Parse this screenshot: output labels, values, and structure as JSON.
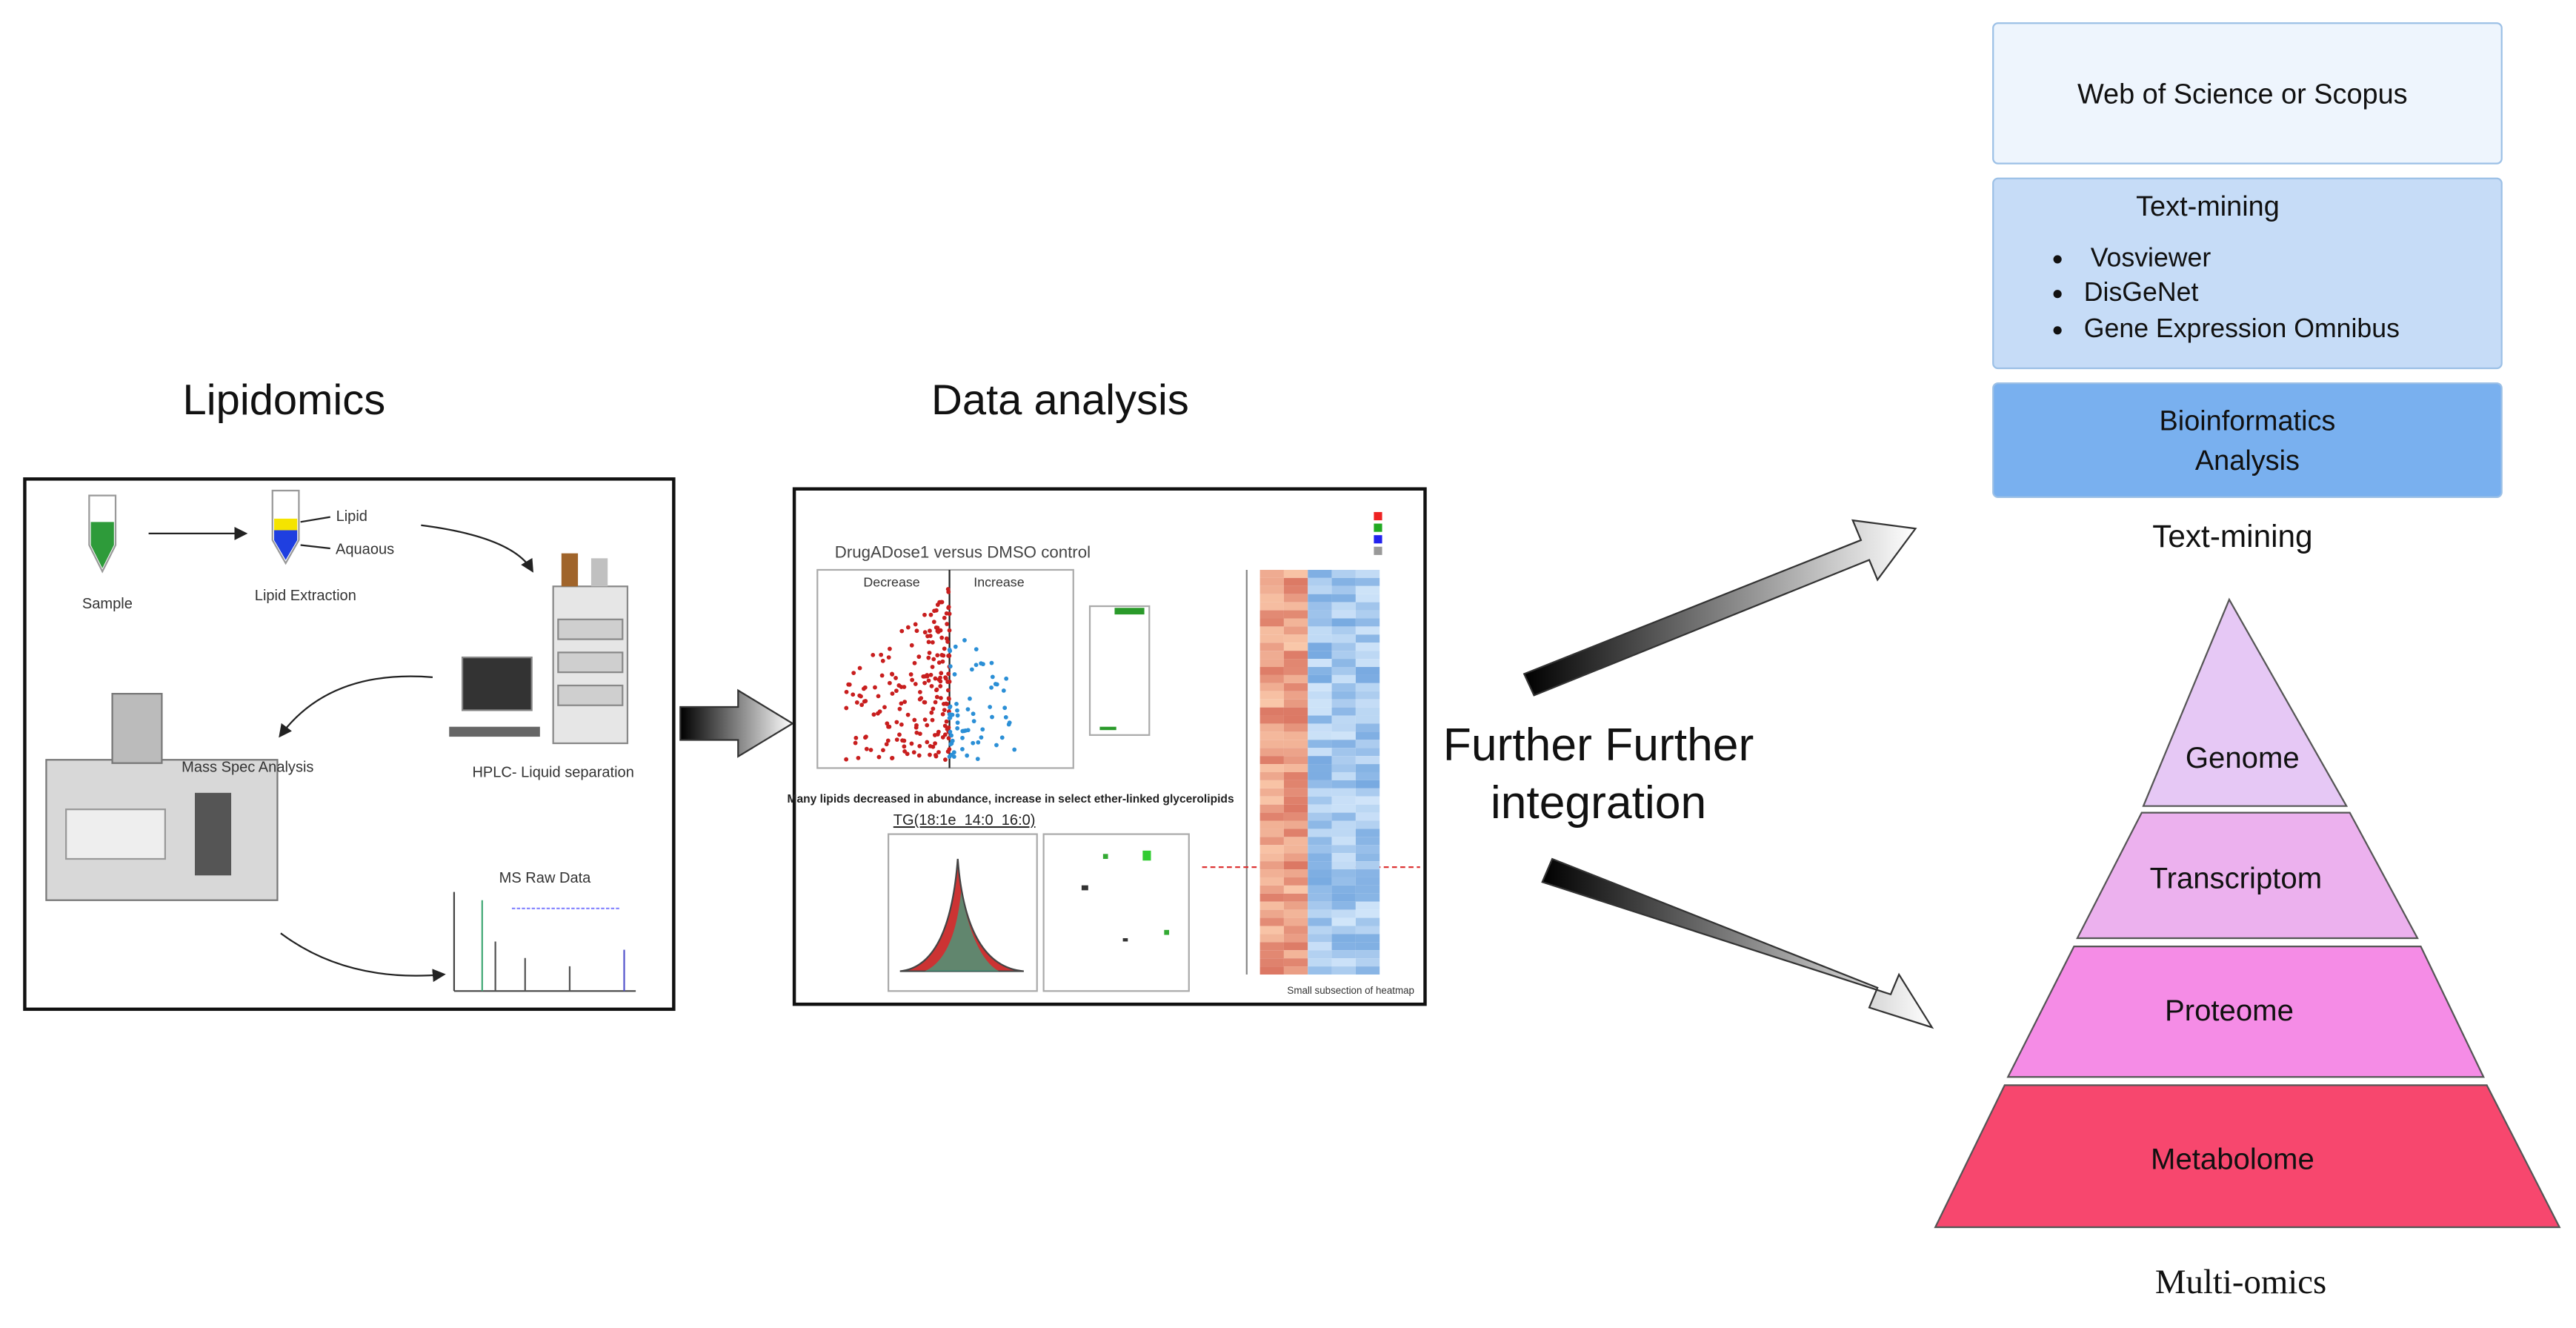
{
  "lipidomics": {
    "title": "Lipidomics",
    "sample": "Sample",
    "lipid": "Lipid",
    "aqueous": "Aquaous",
    "lipid_extraction": "Lipid Extraction",
    "mass_spec": "Mass Spec Analysis",
    "hplc": "HPLC- Liquid separation",
    "ms_raw": "MS Raw Data"
  },
  "data_analysis": {
    "title": "Data analysis",
    "plot_title": "DrugADose1 versus DMSO control",
    "decrease": "Decrease",
    "increase": "Increase",
    "caption": "Many lipids decreased in abundance, increase in select ether-linked glycerolipids",
    "lipid_name": "TG(18:1e_14:0_16:0)",
    "heatmap_caption": "Small subsection of heatmap"
  },
  "integration": {
    "lines": [
      "Further Further",
      "integration"
    ]
  },
  "text_mining": {
    "database": "Web of Science or Scopus",
    "heading": "Text-mining",
    "tools": [
      "Vosviewer",
      "DisGeNet",
      "Gene Expression Omnibus"
    ],
    "bioinformatics": [
      "Bioinformatics",
      "Analysis"
    ],
    "caption": "Text-mining"
  },
  "multi_omics": {
    "levels": [
      "Genome",
      "Transcriptom",
      "Proteome",
      "Metabolome"
    ],
    "caption": "Multi-omics"
  }
}
